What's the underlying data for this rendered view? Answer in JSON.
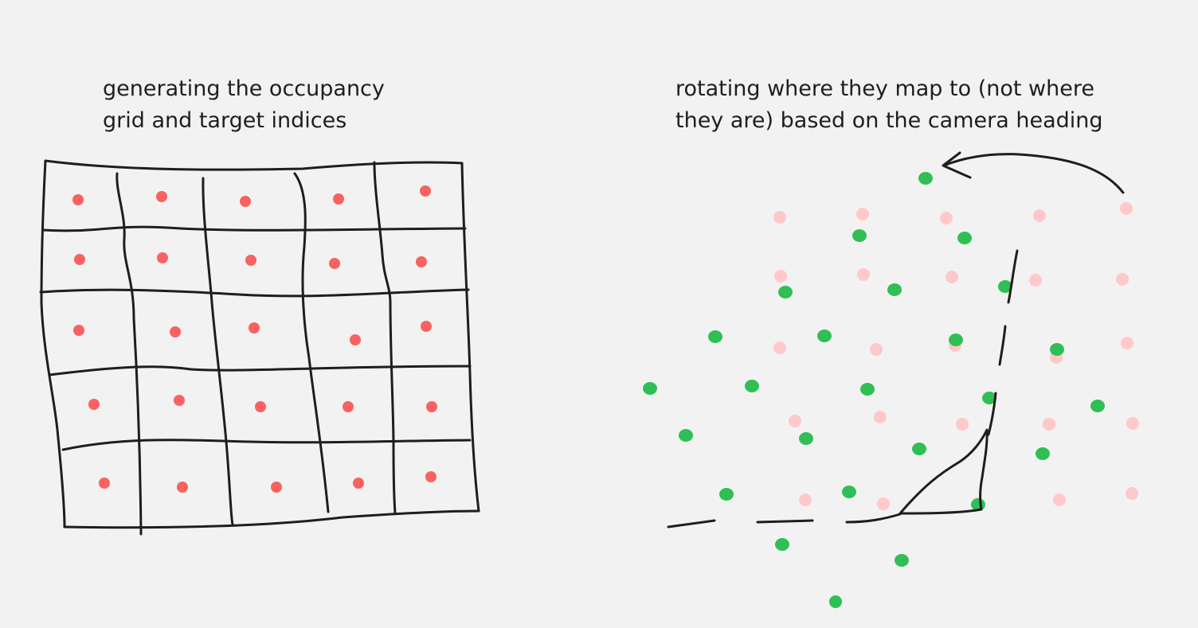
{
  "captions": {
    "left": "generating the occupancy\ngrid and target indices",
    "right": "rotating where they map to (not where\nthey are) based on the camera heading"
  },
  "colors": {
    "background": "#f2f2f2",
    "ink": "#1e1e1e",
    "target_dot": "#fa6161",
    "original_dot": "#ffc9c9",
    "rotated_dot": "#2fbf55"
  },
  "grid": {
    "rows": 5,
    "cols": 5
  }
}
